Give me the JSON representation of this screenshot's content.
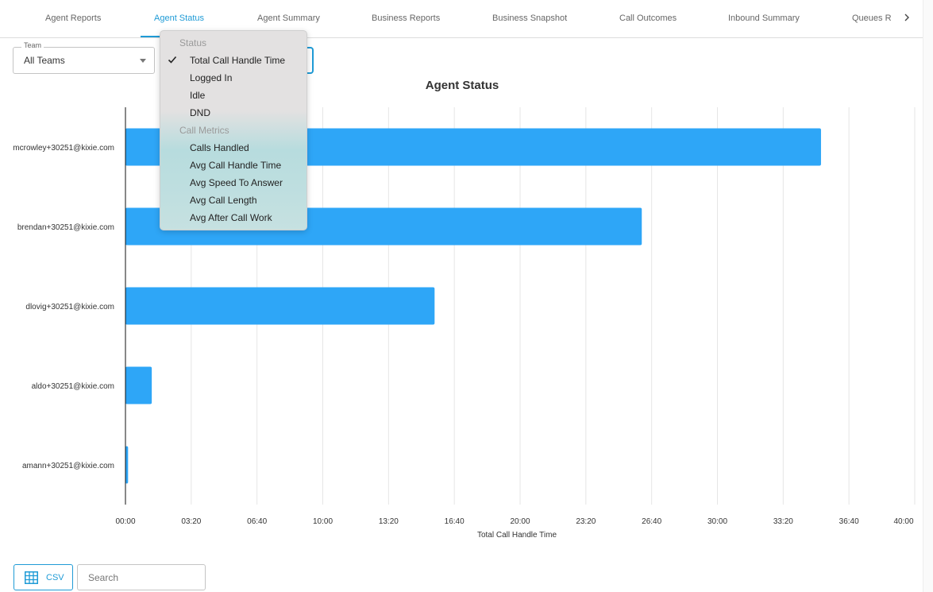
{
  "tabs": [
    {
      "label": "Agent Reports",
      "active": false
    },
    {
      "label": "Agent Status",
      "active": true
    },
    {
      "label": "Agent Summary",
      "active": false
    },
    {
      "label": "Business Reports",
      "active": false
    },
    {
      "label": "Business Snapshot",
      "active": false
    },
    {
      "label": "Call Outcomes",
      "active": false
    },
    {
      "label": "Inbound Summary",
      "active": false
    },
    {
      "label": "Queues R",
      "active": false
    }
  ],
  "tabs_more_icon": "chevron-right-icon",
  "team_filter": {
    "legend": "Team",
    "value": "All Teams"
  },
  "metric_menu": {
    "groups": [
      {
        "header": "Status",
        "items": [
          "Total Call Handle Time",
          "Logged In",
          "Idle",
          "DND"
        ]
      },
      {
        "header": "Call Metrics",
        "items": [
          "Calls Handled",
          "Avg Call Handle Time",
          "Avg Speed To Answer",
          "Avg Call Length",
          "Avg After Call Work"
        ]
      }
    ],
    "selected": "Total Call Handle Time",
    "check_icon": "checkmark-icon"
  },
  "chart_data": {
    "type": "bar",
    "orientation": "horizontal",
    "title": "Agent Status",
    "xlabel": "Total Call Handle Time",
    "ylabel": "",
    "categories": [
      "mcrowley+30251@kixie.com",
      "brendan+30251@kixie.com",
      "dlovig+30251@kixie.com",
      "aldo+30251@kixie.com",
      "amann+30251@kixie.com"
    ],
    "values_seconds": [
      2115,
      1570,
      940,
      80,
      8
    ],
    "x_ticks": [
      "00:00",
      "03:20",
      "06:40",
      "10:00",
      "13:20",
      "16:40",
      "20:00",
      "23:20",
      "26:40",
      "30:00",
      "33:20",
      "36:40",
      "40:00"
    ],
    "xlim_seconds": [
      0,
      2400
    ],
    "bar_color": "#2ea6f7",
    "grid": "vertical"
  },
  "csv_button": {
    "label": "CSV",
    "icon": "table-grid-icon"
  },
  "search": {
    "placeholder": "Search"
  },
  "colors": {
    "accent": "#1f9bd6",
    "bar": "#2ea6f7"
  }
}
